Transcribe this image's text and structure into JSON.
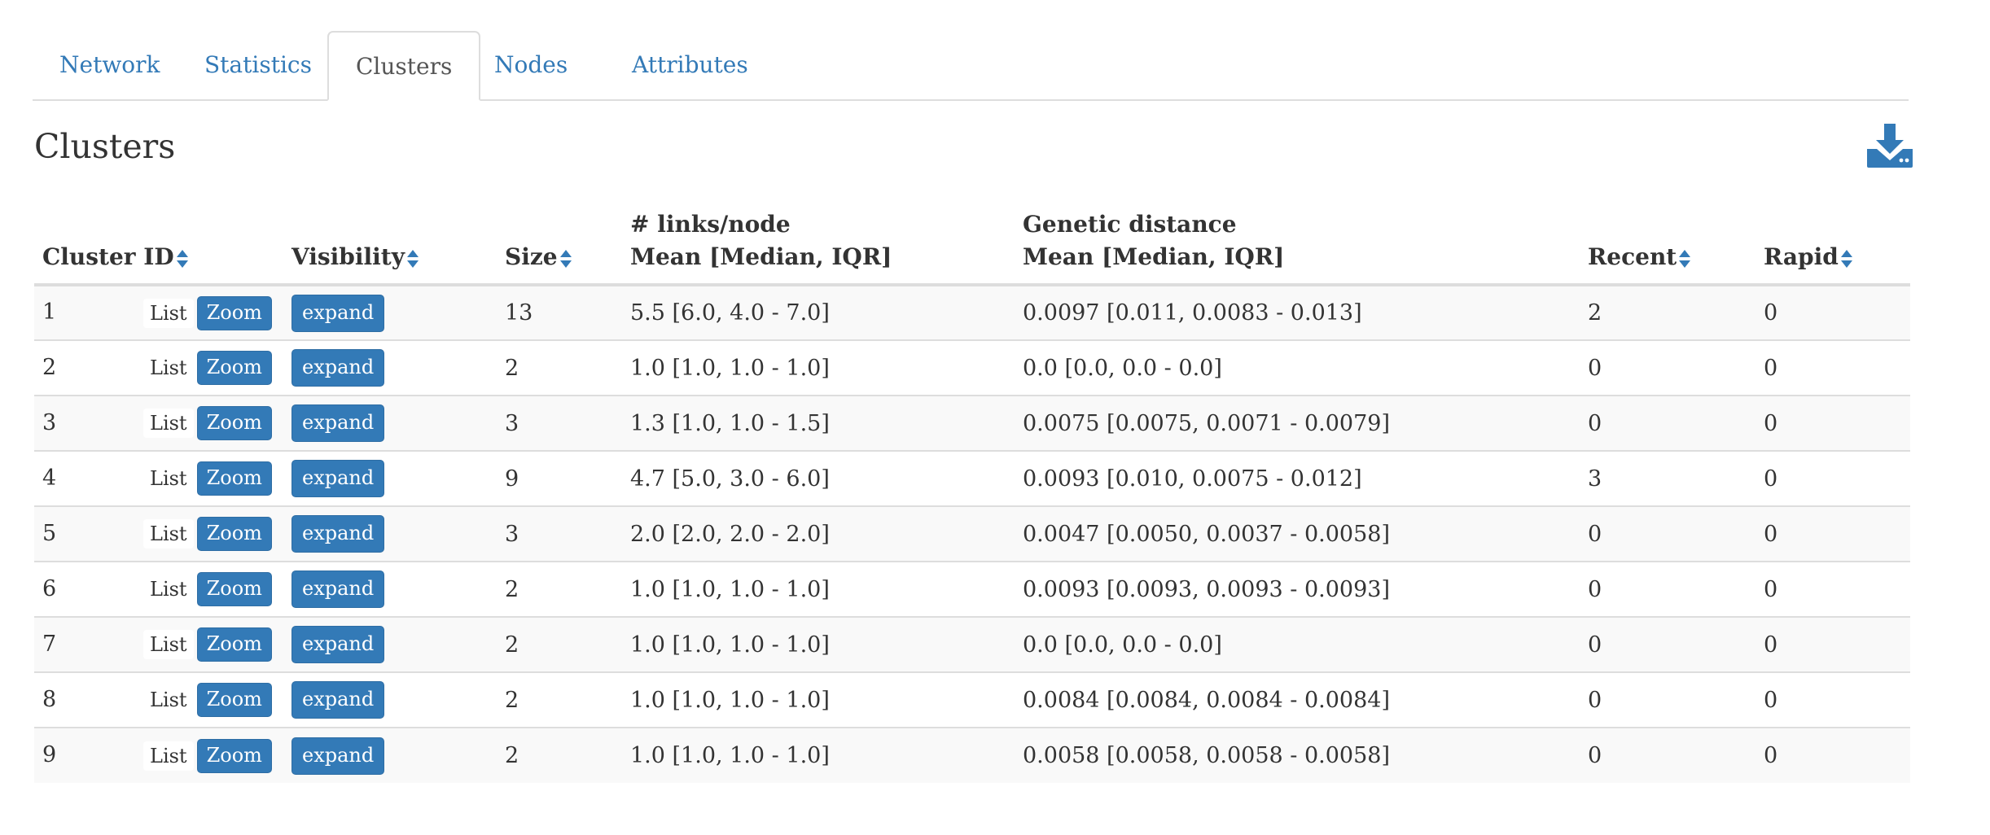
{
  "tabs": [
    {
      "label": "Network",
      "active": false
    },
    {
      "label": "Statistics",
      "active": false
    },
    {
      "label": "Clusters",
      "active": true
    },
    {
      "label": "Nodes",
      "active": false
    },
    {
      "label": "Attributes",
      "active": false
    }
  ],
  "page_title": "Clusters",
  "download_icon": "download-icon",
  "colors": {
    "accent": "#337ab7",
    "sort_icon": "#337ab7",
    "stripe": "#f9f9f9",
    "border": "#dddddd"
  },
  "table": {
    "headers": {
      "cluster_id": "Cluster ID",
      "visibility": "Visibility",
      "size": "Size",
      "links_line1": "# links/node",
      "links_line2": "Mean [Median, IQR]",
      "genetic_line1": "Genetic distance",
      "genetic_line2": "Mean [Median, IQR]",
      "recent": "Recent",
      "rapid": "Rapid"
    },
    "list_label": "List",
    "zoom_label": "Zoom",
    "expand_label": "expand",
    "rows": [
      {
        "id": "1",
        "size": "13",
        "links": "5.5 [6.0, 4.0 - 7.0]",
        "genetic": "0.0097 [0.011, 0.0083 - 0.013]",
        "recent": "2",
        "rapid": "0"
      },
      {
        "id": "2",
        "size": "2",
        "links": "1.0 [1.0, 1.0 - 1.0]",
        "genetic": "0.0 [0.0, 0.0 - 0.0]",
        "recent": "0",
        "rapid": "0"
      },
      {
        "id": "3",
        "size": "3",
        "links": "1.3 [1.0, 1.0 - 1.5]",
        "genetic": "0.0075 [0.0075, 0.0071 - 0.0079]",
        "recent": "0",
        "rapid": "0"
      },
      {
        "id": "4",
        "size": "9",
        "links": "4.7 [5.0, 3.0 - 6.0]",
        "genetic": "0.0093 [0.010, 0.0075 - 0.012]",
        "recent": "3",
        "rapid": "0"
      },
      {
        "id": "5",
        "size": "3",
        "links": "2.0 [2.0, 2.0 - 2.0]",
        "genetic": "0.0047 [0.0050, 0.0037 - 0.0058]",
        "recent": "0",
        "rapid": "0"
      },
      {
        "id": "6",
        "size": "2",
        "links": "1.0 [1.0, 1.0 - 1.0]",
        "genetic": "0.0093 [0.0093, 0.0093 - 0.0093]",
        "recent": "0",
        "rapid": "0"
      },
      {
        "id": "7",
        "size": "2",
        "links": "1.0 [1.0, 1.0 - 1.0]",
        "genetic": "0.0 [0.0, 0.0 - 0.0]",
        "recent": "0",
        "rapid": "0"
      },
      {
        "id": "8",
        "size": "2",
        "links": "1.0 [1.0, 1.0 - 1.0]",
        "genetic": "0.0084 [0.0084, 0.0084 - 0.0084]",
        "recent": "0",
        "rapid": "0"
      },
      {
        "id": "9",
        "size": "2",
        "links": "1.0 [1.0, 1.0 - 1.0]",
        "genetic": "0.0058 [0.0058, 0.0058 - 0.0058]",
        "recent": "0",
        "rapid": "0"
      }
    ]
  }
}
